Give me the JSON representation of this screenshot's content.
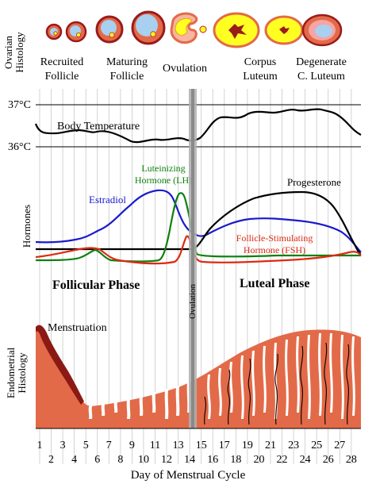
{
  "panels": {
    "ovarian_histology": {
      "axis_label_line1": "Ovarian",
      "axis_label_line2": "Histology",
      "stages": [
        {
          "line1": "Recruited",
          "line2": "Follicle"
        },
        {
          "line1": "Maturing",
          "line2": "Follicle"
        },
        {
          "line1": "Ovulation",
          "line2": ""
        },
        {
          "line1": "Corpus",
          "line2": "Luteum"
        },
        {
          "line1": "Degenerate",
          "line2": "C. Luteum"
        }
      ]
    },
    "temperature": {
      "label": "Body Temperature",
      "tick_high": "37°C",
      "tick_low": "36°C"
    },
    "hormones": {
      "axis_label": "Hormones",
      "lh_line1": "Luteinizing",
      "lh_line2": "Hormone (LH)",
      "estradiol": "Estradiol",
      "progesterone": "Progesterone",
      "fsh_line1": "Follicle-Stimulating",
      "fsh_line2": "Hormone (FSH)",
      "follicular_phase": "Follicular Phase",
      "luteal_phase": "Luteal Phase",
      "ovulation": "Ovulation"
    },
    "endometrium": {
      "axis_label_line1": "Endometrial",
      "axis_label_line2": "Histology",
      "menstruation": "Menstruation"
    }
  },
  "x_axis": {
    "title": "Day of Menstrual Cycle",
    "days_odd": [
      "1",
      "3",
      "5",
      "7",
      "9",
      "11",
      "13",
      "15",
      "17",
      "19",
      "21",
      "23",
      "25",
      "27"
    ],
    "days_even": [
      "2",
      "4",
      "6",
      "8",
      "10",
      "12",
      "14",
      "16",
      "18",
      "20",
      "22",
      "24",
      "26",
      "28"
    ]
  },
  "colors": {
    "estradiol": "#1a1acc",
    "lh": "#108010",
    "fsh": "#dd2a10",
    "progesterone": "#000000",
    "temperature": "#000000",
    "endometrium": "#e36a48",
    "endometrium_dark": "#8b1a14",
    "follicle_fill": "#a8d0f0",
    "corpus_yellow": "#ffff22",
    "ovary_rim": "#9a1b1b",
    "ovulation_line": "#9a9a9a"
  }
}
